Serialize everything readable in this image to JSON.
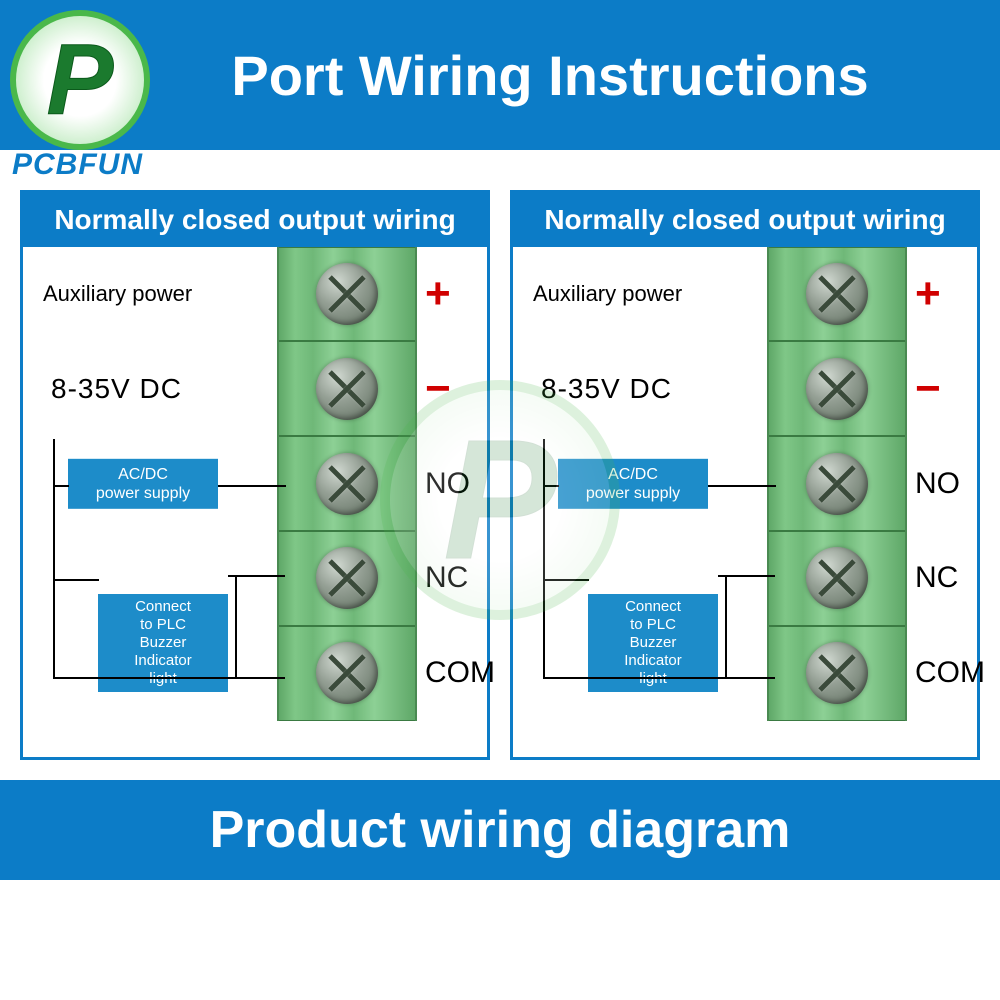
{
  "brand": "PCBFUN",
  "logo_letter": "P",
  "header_title": "Port Wiring Instructions",
  "footer_title": "Product wiring diagram",
  "colors": {
    "primary_blue": "#0c7cc7",
    "terminal_green": "#7fc787",
    "box_blue": "#1d8cc9",
    "text_black": "#000000",
    "text_white": "#ffffff",
    "polarity_red": "#d00000",
    "logo_green": "#4ab84a"
  },
  "panels": [
    {
      "header": "Normally closed output wiring",
      "aux_power_label": "Auxiliary power",
      "voltage_label": "8-35V DC",
      "acdc_label": "AC/DC power supply",
      "plc_label": "Connect to PLC Buzzer Indicator light",
      "terminals": [
        {
          "symbol": "+",
          "class": "plus"
        },
        {
          "symbol": "−",
          "class": "minus"
        },
        {
          "symbol": "NO",
          "class": ""
        },
        {
          "symbol": "NC",
          "class": ""
        },
        {
          "symbol": "COM",
          "class": ""
        }
      ]
    },
    {
      "header": "Normally closed output wiring",
      "aux_power_label": "Auxiliary power",
      "voltage_label": "8-35V DC",
      "acdc_label": "AC/DC power supply",
      "plc_label": "Connect to PLC Buzzer Indicator light",
      "terminals": [
        {
          "symbol": "+",
          "class": "plus"
        },
        {
          "symbol": "−",
          "class": "minus"
        },
        {
          "symbol": "NO",
          "class": ""
        },
        {
          "symbol": "NC",
          "class": ""
        },
        {
          "symbol": "COM",
          "class": ""
        }
      ]
    }
  ]
}
